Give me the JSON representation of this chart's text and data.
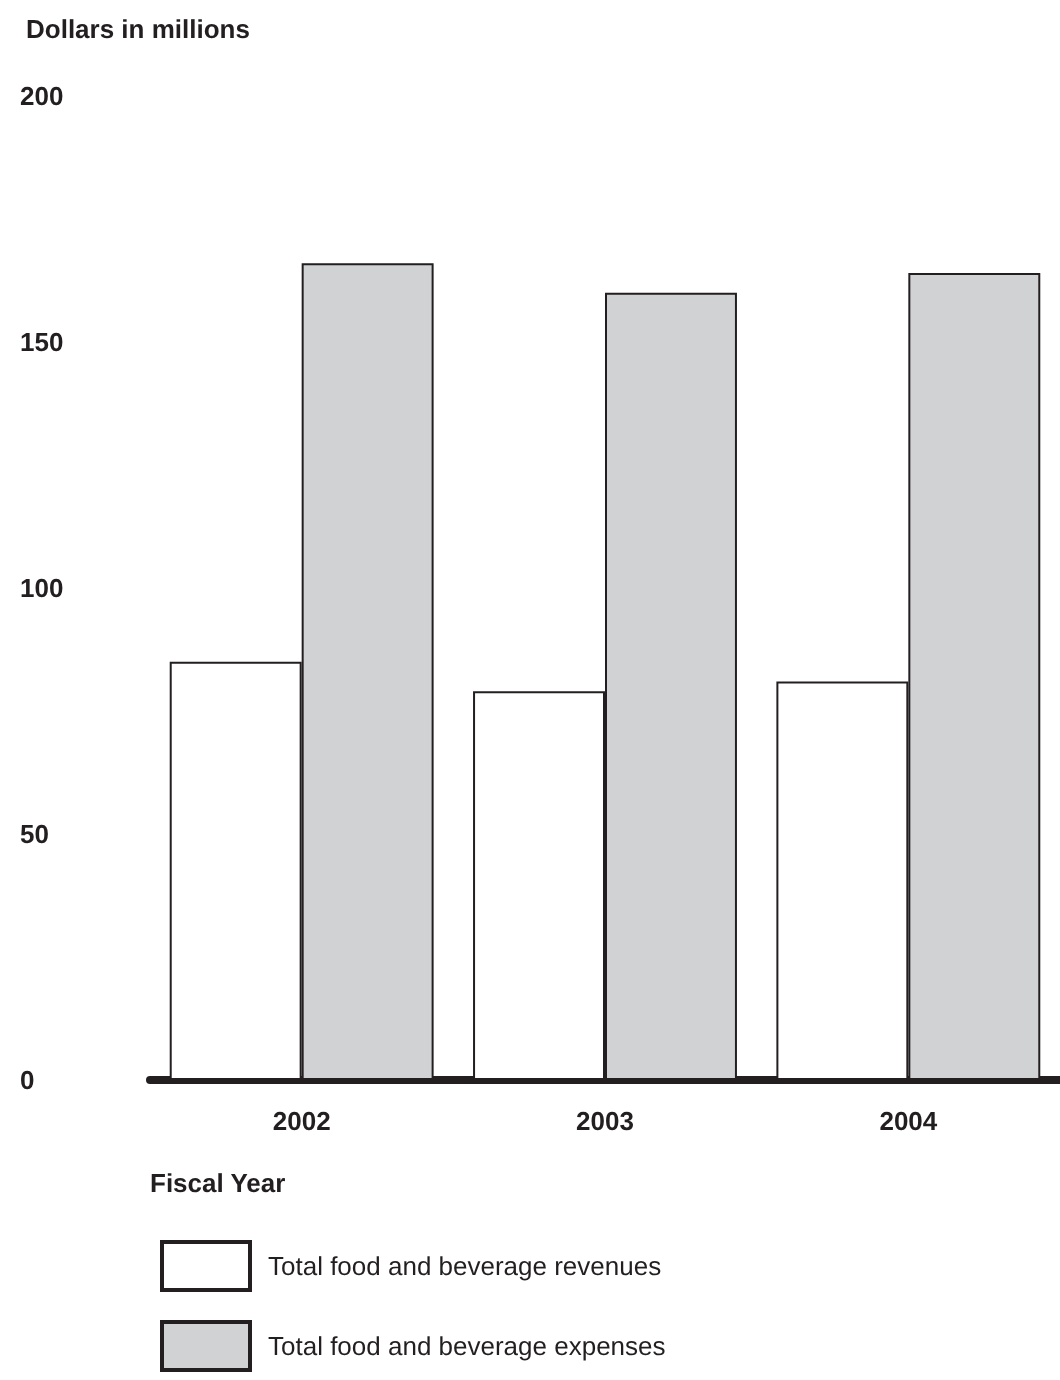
{
  "chart_data": {
    "type": "bar",
    "ylabel": "Dollars in millions",
    "xlabel": "Fiscal Year",
    "categories": [
      "2002",
      "2003",
      "2004"
    ],
    "series": [
      {
        "name": "Total food and beverage revenues",
        "color": "#ffffff",
        "values": [
          85,
          79,
          81
        ]
      },
      {
        "name": "Total food and beverage expenses",
        "color": "#d1d2d4",
        "values": [
          166,
          160,
          164
        ]
      }
    ],
    "ylim": [
      0,
      200
    ],
    "yticks": [
      0,
      50,
      100,
      150,
      200
    ],
    "grid": false,
    "legend": "bottom left"
  }
}
